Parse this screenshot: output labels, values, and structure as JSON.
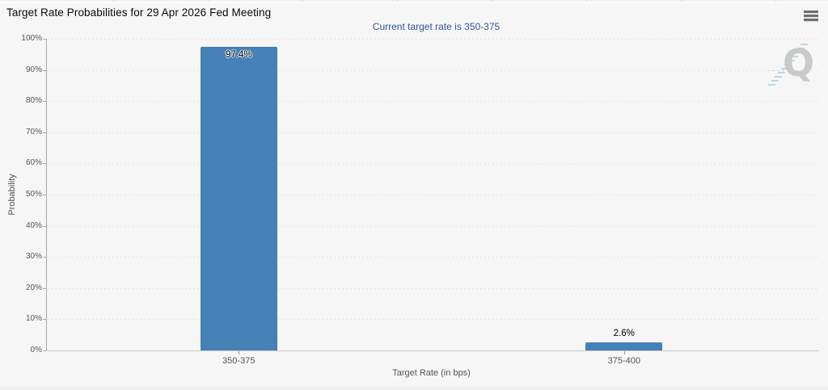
{
  "header": {
    "title": "Target Rate Probabilities for 29 Apr 2026 Fed Meeting"
  },
  "chart_data": {
    "type": "bar",
    "title": "Target Rate Probabilities for 29 Apr 2026 Fed Meeting",
    "subtitle": "Current target rate is 350-375",
    "categories": [
      "350-375",
      "375-400"
    ],
    "values": [
      97.4,
      2.6
    ],
    "bar_labels": [
      "97.4%",
      "2.6%"
    ],
    "xlabel": "Target Rate (in bps)",
    "ylabel": "Probability",
    "ylim": [
      0,
      100
    ],
    "ytick_step": 10,
    "ytick_labels": [
      "0%",
      "10%",
      "20%",
      "30%",
      "40%",
      "50%",
      "60%",
      "70%",
      "80%",
      "90%",
      "100%"
    ],
    "grid": "dotted-horizontal",
    "legend": "none",
    "bar_color": "#4580b6",
    "subtitle_color": "#36529b"
  },
  "watermark": {
    "letter": "Q"
  }
}
